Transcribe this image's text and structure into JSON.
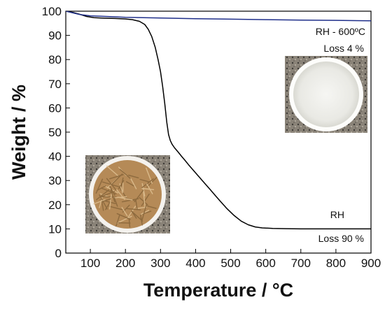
{
  "chart_data": {
    "type": "line",
    "xlabel": "Temperature / °C",
    "ylabel": "Weight / %",
    "xlim": [
      30,
      900
    ],
    "ylim": [
      0,
      100
    ],
    "xticks": [
      100,
      200,
      300,
      400,
      500,
      600,
      700,
      800,
      900
    ],
    "yticks": [
      0,
      10,
      20,
      30,
      40,
      50,
      60,
      70,
      80,
      90,
      100
    ],
    "grid": false,
    "series": [
      {
        "name": "RH",
        "color": "#000000",
        "x": [
          30,
          50,
          70,
          90,
          110,
          140,
          170,
          200,
          220,
          240,
          255,
          265,
          275,
          285,
          293,
          300,
          306,
          312,
          318,
          323,
          328,
          333,
          340,
          350,
          360,
          370,
          380,
          395,
          410,
          425,
          440,
          455,
          470,
          490,
          510,
          530,
          550,
          570,
          590,
          620,
          660,
          700,
          750,
          800,
          850,
          900
        ],
        "y": [
          100,
          99.5,
          98.7,
          97.8,
          97.3,
          97.1,
          97.0,
          96.8,
          96.5,
          95.8,
          94.5,
          92.5,
          89.5,
          85.0,
          80.0,
          75.0,
          69.0,
          62.0,
          54.0,
          49.0,
          46.5,
          45.0,
          43.5,
          41.8,
          40.0,
          38.3,
          36.5,
          34.0,
          31.5,
          29.0,
          26.5,
          24.0,
          21.5,
          18.3,
          15.5,
          13.2,
          11.7,
          10.8,
          10.4,
          10.2,
          10.1,
          10.0,
          10.0,
          10.0,
          10.0,
          10.0
        ]
      },
      {
        "name": "RH - 600ºC",
        "color": "#1f2f8a",
        "x": [
          30,
          50,
          70,
          100,
          150,
          200,
          300,
          400,
          500,
          600,
          700,
          800,
          900
        ],
        "y": [
          100,
          99.3,
          98.6,
          98.1,
          97.8,
          97.5,
          97.2,
          96.9,
          96.7,
          96.5,
          96.3,
          96.2,
          96.0
        ]
      }
    ],
    "annotations": [
      {
        "id": "rh600-label",
        "text": "RH - 600ºC"
      },
      {
        "id": "rh600-loss",
        "text": "Loss 4 %"
      },
      {
        "id": "rh-label",
        "text": "RH"
      },
      {
        "id": "rh-loss",
        "text": "Loss 90 %"
      }
    ],
    "images": [
      {
        "name": "white-ash-sample-photo"
      },
      {
        "name": "rice-husk-sample-photo"
      }
    ]
  }
}
